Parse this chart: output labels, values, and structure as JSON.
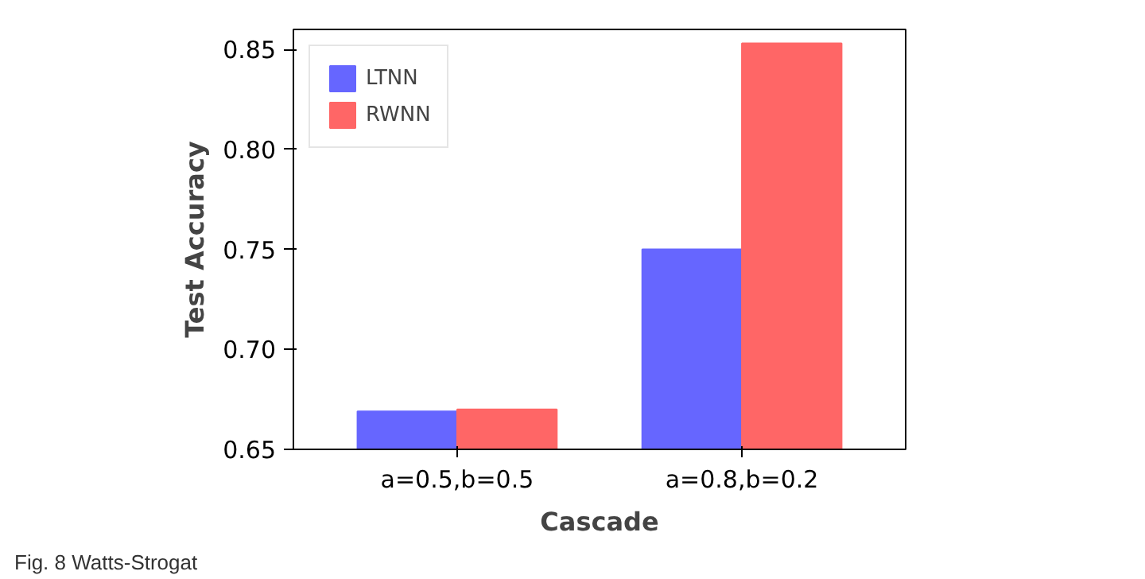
{
  "chart_data": {
    "type": "bar",
    "xlabel": "Cascade",
    "ylabel": "Test Accuracy",
    "categories": [
      "a=0.5,b=0.5",
      "a=0.8,b=0.2"
    ],
    "series": [
      {
        "name": "LTNN",
        "color": "#6666ff",
        "values": [
          0.669,
          0.75
        ]
      },
      {
        "name": "RWNN",
        "color": "#ff6666",
        "values": [
          0.67,
          0.853
        ]
      }
    ],
    "ylim": [
      0.65,
      0.86
    ],
    "yticks": [
      0.65,
      {
        "value": 0.7,
        "label": "0.70"
      },
      0.75,
      {
        "value": 0.8,
        "label": "0.80"
      },
      0.85
    ],
    "legend": "top left",
    "grid": false,
    "annotations": [
      "Fig. 8 Watts-Strogat"
    ]
  }
}
